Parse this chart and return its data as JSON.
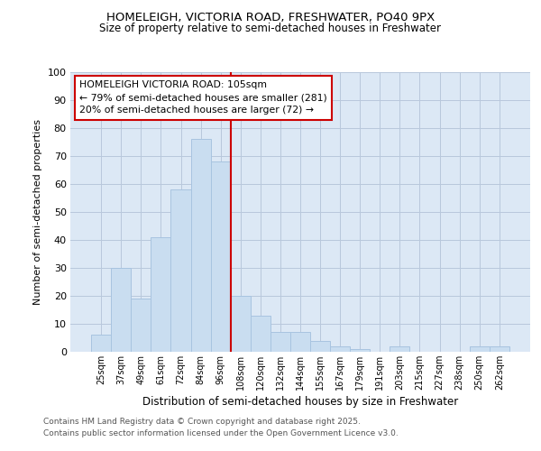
{
  "title1": "HOMELEIGH, VICTORIA ROAD, FRESHWATER, PO40 9PX",
  "title2": "Size of property relative to semi-detached houses in Freshwater",
  "xlabel": "Distribution of semi-detached houses by size in Freshwater",
  "ylabel": "Number of semi-detached properties",
  "categories": [
    "25sqm",
    "37sqm",
    "49sqm",
    "61sqm",
    "72sqm",
    "84sqm",
    "96sqm",
    "108sqm",
    "120sqm",
    "132sqm",
    "144sqm",
    "155sqm",
    "167sqm",
    "179sqm",
    "191sqm",
    "203sqm",
    "215sqm",
    "227sqm",
    "238sqm",
    "250sqm",
    "262sqm"
  ],
  "values": [
    6,
    30,
    19,
    41,
    58,
    76,
    68,
    20,
    13,
    7,
    7,
    4,
    2,
    1,
    0,
    2,
    0,
    0,
    0,
    2,
    2
  ],
  "bar_color": "#c9ddf0",
  "bar_edge_color": "#a8c4e0",
  "grid_color": "#b8c8dc",
  "axes_bg_color": "#dce8f5",
  "figure_bg_color": "#ffffff",
  "vline_x_index": 6.5,
  "vline_color": "#cc0000",
  "annotation_title": "HOMELEIGH VICTORIA ROAD: 105sqm",
  "annotation_line1": "← 79% of semi-detached houses are smaller (281)",
  "annotation_line2": "20% of semi-detached houses are larger (72) →",
  "annotation_box_facecolor": "#ffffff",
  "annotation_box_edgecolor": "#cc0000",
  "ylim": [
    0,
    100
  ],
  "yticks": [
    0,
    10,
    20,
    30,
    40,
    50,
    60,
    70,
    80,
    90,
    100
  ],
  "footnote1": "Contains HM Land Registry data © Crown copyright and database right 2025.",
  "footnote2": "Contains public sector information licensed under the Open Government Licence v3.0."
}
